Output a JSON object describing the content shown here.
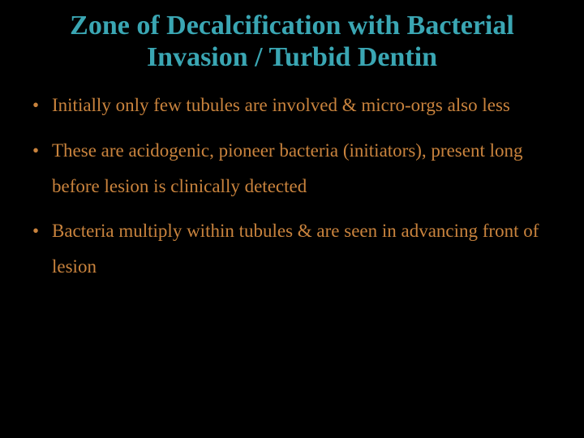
{
  "title": {
    "text": "Zone of Decalcification with Bacterial Invasion / Turbid Dentin",
    "color": "#3aa6b3",
    "fontsize": 34
  },
  "bullets": {
    "items": [
      "Initially only few tubules are involved & micro-orgs also less",
      "These are acidogenic, pioneer bacteria (initiators), present long before lesion is clinically detected",
      "Bacteria multiply within tubules & are seen in advancing front of lesion"
    ],
    "text_color": "#c9833d",
    "bullet_color": "#c9833d",
    "fontsize": 23
  },
  "background_color": "#000000"
}
